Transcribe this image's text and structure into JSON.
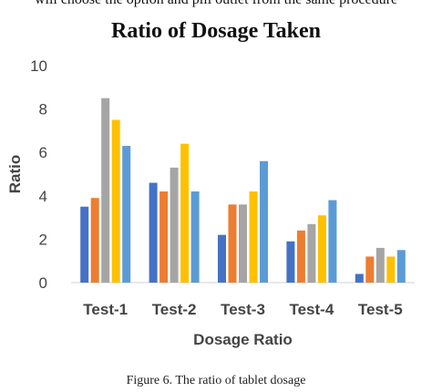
{
  "page": {
    "top_text": "will choose the option and pill outlet from the same procedure",
    "caption": "Figure 6. The ratio of tablet dosage"
  },
  "chart_data": {
    "type": "bar",
    "title": "Ratio of Dosage Taken",
    "xlabel": "Dosage Ratio",
    "ylabel": "Ratio",
    "categories": [
      "Test-1",
      "Test-2",
      "Test-3",
      "Test-4",
      "Test-5"
    ],
    "ylim": [
      0,
      10
    ],
    "yticks": [
      0,
      2,
      4,
      6,
      8,
      10
    ],
    "grid": false,
    "legend": "none",
    "colors": [
      "#4472C4",
      "#ED7D31",
      "#A5A5A5",
      "#FFC000",
      "#5B9BD5"
    ],
    "series": [
      {
        "values": [
          3.5,
          4.6,
          2.2,
          1.9,
          0.4
        ]
      },
      {
        "values": [
          3.9,
          4.2,
          3.6,
          2.4,
          1.2
        ]
      },
      {
        "values": [
          8.5,
          5.3,
          3.6,
          2.7,
          1.6
        ]
      },
      {
        "values": [
          7.5,
          6.4,
          4.2,
          3.1,
          1.2
        ]
      },
      {
        "values": [
          6.3,
          4.2,
          5.6,
          3.8,
          1.5
        ]
      }
    ]
  }
}
